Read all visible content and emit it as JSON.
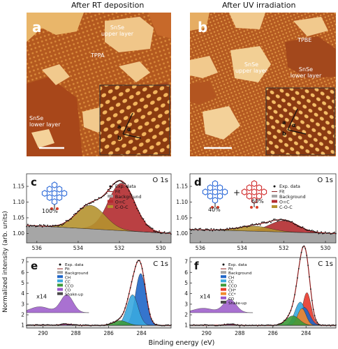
{
  "titles": {
    "left": "After RT deposition",
    "right": "After UV irradiation"
  },
  "stm_a": {
    "letter": "a",
    "labels": {
      "upper": "SnSe\nupper layer",
      "molecule": "TPPA",
      "lower": "SnSe\nlower layer"
    },
    "inset_axes": [
      "a",
      "α",
      "b"
    ]
  },
  "stm_b": {
    "letter": "b",
    "labels": {
      "molecule": "TPBE",
      "upper": "SnSe\nupper layer",
      "lower": "SnSe\nlower layer"
    },
    "inset_axes": [
      "a",
      "α",
      "b"
    ]
  },
  "y_label": "Normalized intensity (arb. units)",
  "x_label": "Binding energy (eV)",
  "colors": {
    "exp": "#111111",
    "fit": "#8c1c1c",
    "background": "#a6a6a6",
    "oc": "#b32b2f",
    "coc": "#b5922f",
    "ch": "#1f66c8",
    "cc": "#39a9df",
    "cco": "#f28a2e",
    "co": "#9a58c9",
    "shakeup": "#4a4a4a",
    "ch_star": "#e83a2c",
    "cc_star": "#e8432c",
    "green": "#3c9a3a"
  },
  "chart_data": [
    {
      "panel": "c",
      "type": "area",
      "title": "O 1s",
      "xlim": [
        536.5,
        529.5
      ],
      "ylim": [
        0.97,
        1.19
      ],
      "x_ticks": [
        536,
        534,
        532,
        530
      ],
      "y_ticks": [
        1.0,
        1.05,
        1.1,
        1.15
      ],
      "legend": [
        "Exp. data",
        "Fit",
        "Background",
        "O=C",
        "C-O-C"
      ],
      "annotation": "100%",
      "components": [
        {
          "name": "O=C",
          "center": 531.9,
          "fwhm": 1.5,
          "height": 0.151
        },
        {
          "name": "C-O-C",
          "center": 533.4,
          "fwhm": 1.65,
          "height": 0.075
        }
      ],
      "background": {
        "low_be": 1.0,
        "high_be": 1.026
      }
    },
    {
      "panel": "d",
      "type": "area",
      "title": "O 1s",
      "xlim": [
        536.5,
        529.5
      ],
      "ylim": [
        0.97,
        1.19
      ],
      "x_ticks": [
        536,
        534,
        532,
        530
      ],
      "y_ticks": [
        1.0,
        1.05,
        1.1,
        1.15
      ],
      "legend": [
        "Exp. data",
        "Fit",
        "Background",
        "O=C",
        "C-O-C"
      ],
      "annotations": [
        "40%",
        "60%",
        "+"
      ],
      "components": [
        {
          "name": "O=C",
          "center": 532.0,
          "fwhm": 1.6,
          "height": 0.036
        },
        {
          "name": "C-O-C",
          "center": 533.4,
          "fwhm": 1.8,
          "height": 0.016
        }
      ],
      "background": {
        "low_be": 1.0,
        "high_be": 1.013
      }
    },
    {
      "panel": "e",
      "type": "area",
      "title": "C 1s",
      "xlim": [
        291.0,
        282.2
      ],
      "ylim": [
        0.75,
        7.4
      ],
      "x_ticks": [
        290,
        288,
        286,
        284
      ],
      "y_ticks": [
        1,
        2,
        3,
        4,
        5,
        6,
        7
      ],
      "legend": [
        "Exp. data",
        "Fit",
        "Background",
        "CH",
        "CC",
        "CCO",
        "CO",
        "Shake-up"
      ],
      "inset_label": "x14",
      "components": [
        {
          "name": "CH",
          "center": 284.05,
          "fwhm": 0.75,
          "height": 4.9
        },
        {
          "name": "CC",
          "center": 284.55,
          "fwhm": 0.8,
          "height": 2.9
        },
        {
          "name": "CCO",
          "center": 285.3,
          "fwhm": 1.0,
          "height": 0.45
        },
        {
          "name": "CO",
          "center": 288.55,
          "fwhm": 0.9,
          "height": 0.12
        },
        {
          "name": "Shake-up",
          "center": 290.2,
          "fwhm": 1.4,
          "height": 0.04
        }
      ]
    },
    {
      "panel": "f",
      "type": "area",
      "title": "C 1s",
      "xlim": [
        291.0,
        282.2
      ],
      "ylim": [
        0.75,
        7.4
      ],
      "x_ticks": [
        290,
        288,
        286,
        284
      ],
      "y_ticks": [
        1,
        2,
        3,
        4,
        5,
        6,
        7
      ],
      "legend": [
        "Exp. data",
        "Fit",
        "Background",
        "CH",
        "CC",
        "CCO",
        "CH*",
        "CC*",
        "CO",
        "Shake-up"
      ],
      "inset_label": "x14",
      "components": [
        {
          "name": "CH",
          "center": 284.1,
          "fwhm": 0.75,
          "height": 1.7
        },
        {
          "name": "CC",
          "center": 284.35,
          "fwhm": 0.75,
          "height": 2.2
        },
        {
          "name": "CCO",
          "center": 284.8,
          "fwhm": 0.95,
          "height": 0.9
        },
        {
          "name": "CH*",
          "center": 283.95,
          "fwhm": 0.6,
          "height": 3.1
        },
        {
          "name": "CC*",
          "center": 284.25,
          "fwhm": 0.6,
          "height": 1.6
        },
        {
          "name": "CO",
          "center": 288.6,
          "fwhm": 0.9,
          "height": 0.09
        },
        {
          "name": "Shake-up",
          "center": 290.2,
          "fwhm": 1.4,
          "height": 0.03
        }
      ]
    }
  ]
}
